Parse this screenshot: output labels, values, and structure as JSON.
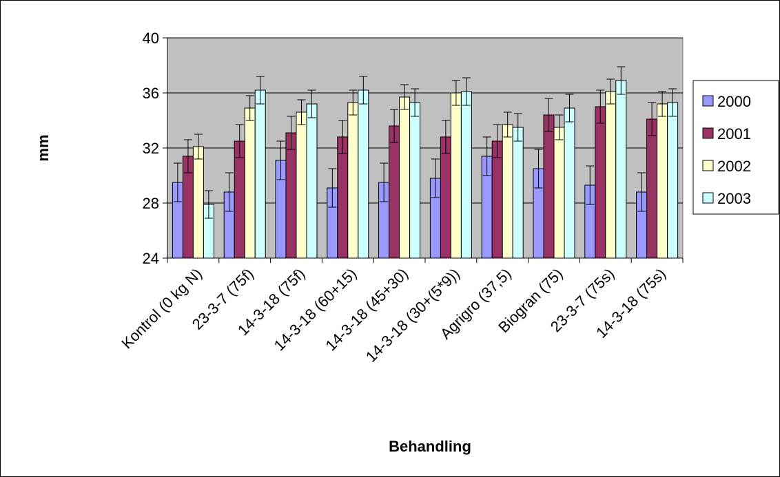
{
  "chart_data": {
    "type": "bar",
    "title": "",
    "xlabel": "Behandling",
    "ylabel": "mm",
    "ylim": [
      24,
      40
    ],
    "yticks": [
      24,
      28,
      32,
      36,
      40
    ],
    "grid": true,
    "legend_position": "right",
    "categories": [
      "Kontrol (0 kg N)",
      "23-3-7 (75f)",
      "14-3-18 (75f)",
      "14-3-18 (60+15)",
      "14-3-18 (45+30)",
      "14-3-18 (30+(5*9))",
      "Agrigro (37,5)",
      "Biogran (75)",
      "23-3-7 (75s)",
      "14-3-18 (75s)"
    ],
    "series": [
      {
        "name": "2000",
        "color": "#9999ff",
        "values": [
          29.5,
          28.8,
          31.1,
          29.1,
          29.5,
          29.8,
          31.4,
          30.5,
          29.3,
          28.8
        ],
        "errors": [
          1.4,
          1.4,
          1.4,
          1.4,
          1.4,
          1.4,
          1.4,
          1.4,
          1.4,
          1.4
        ]
      },
      {
        "name": "2001",
        "color": "#993366",
        "values": [
          31.4,
          32.5,
          33.1,
          32.8,
          33.6,
          32.8,
          32.5,
          34.4,
          35.0,
          34.1
        ],
        "errors": [
          1.2,
          1.2,
          1.2,
          1.2,
          1.2,
          1.2,
          1.2,
          1.2,
          1.2,
          1.2
        ]
      },
      {
        "name": "2002",
        "color": "#ffffcc",
        "values": [
          32.1,
          34.9,
          34.6,
          35.3,
          35.7,
          36.0,
          33.7,
          33.5,
          36.1,
          35.2
        ],
        "errors": [
          0.9,
          0.9,
          0.9,
          0.9,
          0.9,
          0.9,
          0.9,
          0.9,
          0.9,
          0.9
        ]
      },
      {
        "name": "2003",
        "color": "#ccffff",
        "values": [
          27.9,
          36.2,
          35.2,
          36.2,
          35.3,
          36.1,
          33.5,
          34.9,
          36.9,
          35.3
        ],
        "errors": [
          1.0,
          1.0,
          1.0,
          1.0,
          1.0,
          1.0,
          1.0,
          1.0,
          1.0,
          1.0
        ]
      }
    ],
    "plot_background": "#c0c0c0",
    "bar_stroke": "#000000"
  }
}
